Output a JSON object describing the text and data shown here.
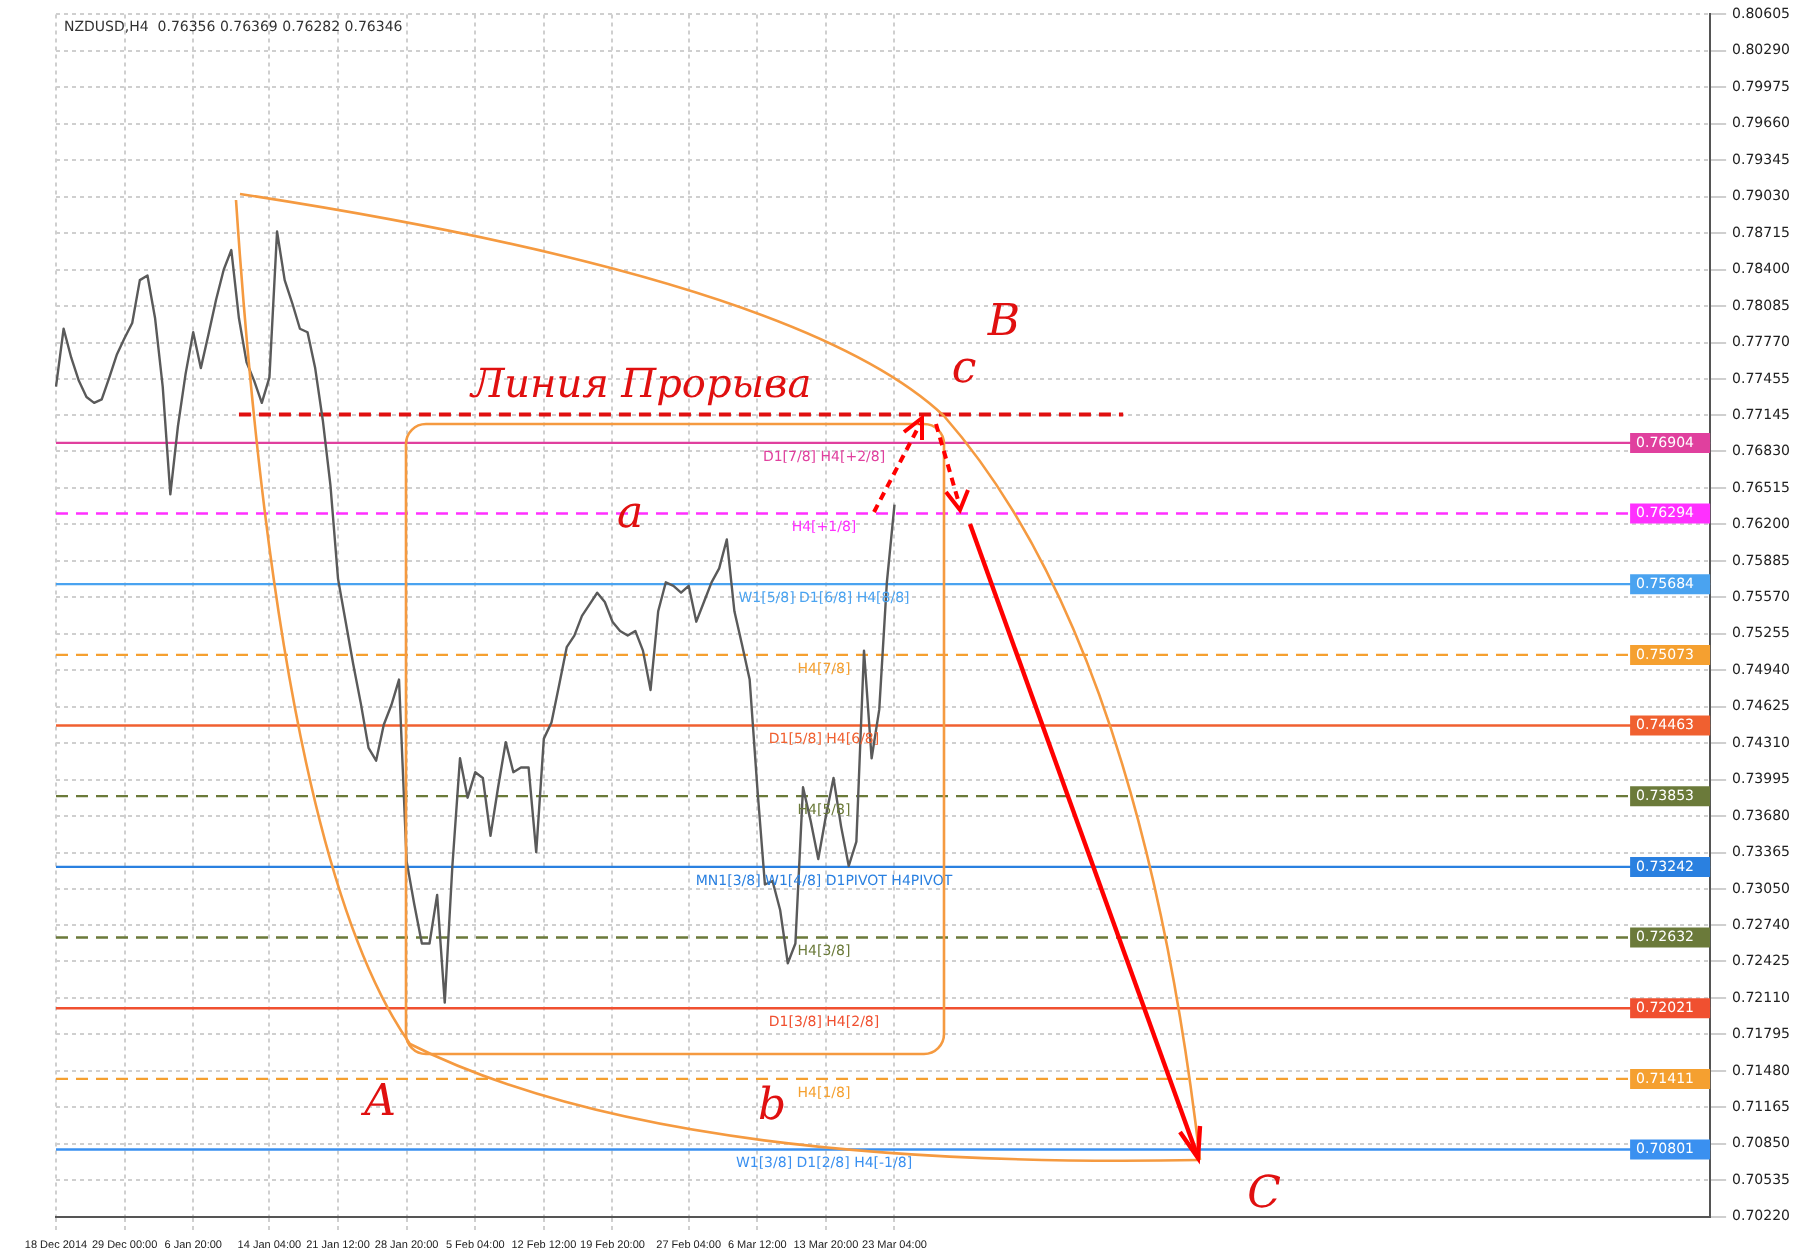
{
  "chart_data": {
    "type": "line",
    "title": "NZDUSD,H4  0.76356 0.76369 0.76282 0.76346",
    "categories": [
      "18 Dec 2014",
      null,
      null,
      null,
      null,
      null,
      null,
      null,
      null,
      "29 Dec 00:00",
      null,
      null,
      null,
      null,
      null,
      null,
      null,
      null,
      "6 Jan 20:00",
      null,
      null,
      null,
      null,
      null,
      null,
      null,
      null,
      null,
      "14 Jan 04:00",
      null,
      null,
      null,
      null,
      null,
      null,
      null,
      null,
      "21 Jan 12:00",
      null,
      null,
      null,
      null,
      null,
      null,
      null,
      null,
      "28 Jan 20:00",
      null,
      null,
      null,
      null,
      null,
      null,
      null,
      null,
      "5 Feb 04:00",
      null,
      null,
      null,
      null,
      null,
      null,
      null,
      null,
      "12 Feb 12:00",
      null,
      null,
      null,
      null,
      null,
      null,
      null,
      null,
      "19 Feb 20:00",
      null,
      null,
      null,
      null,
      null,
      null,
      null,
      null,
      null,
      "27 Feb 04:00",
      null,
      null,
      null,
      null,
      null,
      null,
      null,
      null,
      "6 Mar 12:00",
      null,
      null,
      null,
      null,
      null,
      null,
      null,
      null,
      "13 Mar 20:00",
      null,
      null,
      null,
      null,
      null,
      null,
      null,
      null,
      "23 Mar 04:00",
      null,
      null,
      null,
      null,
      null,
      null,
      null,
      null,
      null,
      null,
      null,
      null,
      null,
      null,
      null,
      null,
      null,
      null,
      null,
      null,
      null,
      null,
      null,
      null,
      null,
      null,
      null,
      null,
      null,
      null,
      null,
      null,
      null,
      null,
      null,
      null,
      null,
      null,
      null,
      null,
      null,
      null,
      null,
      null,
      null,
      null,
      null,
      null,
      null,
      null,
      null,
      null,
      null,
      null,
      null,
      null,
      null,
      null,
      null,
      null,
      null,
      null,
      null,
      null,
      null,
      null,
      null,
      null,
      null,
      null,
      null,
      null,
      null,
      null,
      null,
      null,
      null,
      null,
      null,
      null,
      null,
      null,
      null,
      null,
      null,
      null,
      null,
      null,
      null,
      null,
      null,
      null,
      null,
      null,
      null,
      null,
      null,
      null,
      null,
      null,
      null,
      null,
      null,
      null,
      null,
      null,
      null
    ],
    "series": [
      {
        "color": "#5a5a5a",
        "values": [
          0.7739,
          0.7789,
          0.7764,
          0.7744,
          0.773,
          0.7725,
          0.7728,
          0.7747,
          0.7767,
          0.7781,
          0.7794,
          0.7831,
          0.7835,
          0.7798,
          0.7739,
          0.7646,
          0.7705,
          0.775,
          0.7786,
          0.7755,
          0.7784,
          0.7814,
          0.784,
          0.7857,
          0.7798,
          0.776,
          0.7744,
          0.7725,
          0.7747,
          0.7873,
          0.7831,
          0.7811,
          0.7789,
          0.7786,
          0.7755,
          0.771,
          0.7654,
          0.7573,
          0.7536,
          0.7499,
          0.7465,
          0.7427,
          0.7416,
          0.7447,
          0.7464,
          0.7486,
          0.7329,
          0.7292,
          0.7258,
          0.7258,
          0.73,
          0.7207,
          0.7325,
          0.7418,
          0.7384,
          0.7406,
          0.7401,
          0.7351,
          0.7393,
          0.7432,
          0.7406,
          0.741,
          0.741,
          0.7337,
          0.7435,
          0.7449,
          0.7481,
          0.7514,
          0.7524,
          0.7541,
          0.7551,
          0.7561,
          0.7553,
          0.7536,
          0.7528,
          0.7524,
          0.7528,
          0.7511,
          0.7477,
          0.7545,
          0.757,
          0.7567,
          0.7561,
          0.7567,
          0.7536,
          0.7553,
          0.757,
          0.7582,
          0.7607,
          0.7545,
          0.7516,
          0.7486,
          0.7393,
          0.7309,
          0.7312,
          0.7287,
          0.7241,
          0.7258,
          0.7393,
          0.7364,
          0.7331,
          0.7368,
          0.7401,
          0.7359,
          0.7325,
          0.7346,
          0.7511,
          0.7418,
          0.746,
          0.757,
          0.7637,
          null,
          null,
          null,
          null,
          null,
          null,
          null,
          null,
          null,
          null,
          null,
          null,
          null,
          null,
          null,
          null,
          null,
          null,
          null,
          null,
          null,
          null,
          null,
          null,
          null,
          null,
          null,
          null,
          null,
          null,
          null,
          null,
          null,
          null,
          null,
          null,
          null,
          null,
          null,
          null,
          null,
          null,
          null,
          null,
          null,
          null,
          null,
          null,
          null,
          null,
          null,
          null,
          null,
          null,
          null,
          null,
          null,
          null,
          null,
          null,
          null,
          null,
          null,
          null,
          null,
          null,
          null,
          null,
          null,
          null,
          null,
          null,
          null,
          null,
          null,
          null,
          null,
          null,
          null,
          null,
          null,
          null,
          null,
          null,
          null,
          null,
          null,
          null,
          null,
          null,
          null,
          null,
          null,
          null,
          null,
          null,
          null,
          null,
          null,
          null,
          null,
          null,
          null,
          null,
          null,
          null,
          null
        ]
      },
      {
        "name": "Линия Прорыва",
        "color": "#e01010",
        "line_style": "dashed",
        "values": [
          null,
          null,
          null,
          null,
          null,
          null,
          null,
          null,
          null,
          null,
          null,
          null,
          null,
          null,
          null,
          null,
          null,
          null,
          null,
          null,
          null,
          null,
          null,
          null,
          0.7715,
          null,
          null,
          null,
          null,
          null,
          null,
          null,
          null,
          null,
          null,
          null,
          null,
          null,
          null,
          null,
          null,
          null,
          null,
          null,
          null,
          null,
          null,
          null,
          null,
          null,
          null,
          null,
          null,
          null,
          null,
          null,
          null,
          null,
          null,
          null,
          null,
          null,
          null,
          null,
          null,
          null,
          null,
          null,
          null,
          null,
          null,
          null,
          null,
          null,
          null,
          null,
          null,
          null,
          null,
          null,
          null,
          null,
          null,
          null,
          null,
          null,
          null,
          null,
          null,
          null,
          null,
          null,
          null,
          null,
          null,
          null,
          null,
          null,
          null,
          null,
          null,
          null,
          null,
          null,
          null,
          null,
          null,
          null,
          null,
          null,
          null,
          null,
          null,
          null,
          null,
          null,
          null,
          null,
          null,
          null,
          null,
          null,
          null,
          null,
          null,
          null,
          null,
          null,
          null,
          null,
          null,
          null,
          null,
          null,
          null,
          null,
          null,
          null,
          null,
          null,
          0.7715,
          null,
          null,
          null,
          null,
          null,
          null,
          null,
          null,
          null,
          null,
          null,
          null,
          null,
          null,
          null,
          null,
          null,
          null,
          null,
          null,
          null,
          null,
          null,
          null,
          null,
          null,
          null,
          null,
          null,
          null,
          null,
          null,
          null,
          null,
          null,
          null,
          null,
          null,
          null,
          null,
          null,
          null,
          null,
          null,
          null,
          null,
          null,
          null,
          null,
          null,
          null,
          null,
          null,
          null,
          null,
          null,
          null,
          null,
          null,
          null,
          null,
          null,
          null,
          null,
          null,
          null,
          null,
          null,
          null,
          null,
          null,
          null,
          null,
          null,
          null,
          null,
          null
        ]
      }
    ],
    "ylim": [
      0.7022,
      0.80605
    ],
    "yticks": [
      0.80605,
      {
        "value": 0.8029,
        "label": "0.80290"
      },
      0.79975,
      {
        "value": 0.7966,
        "label": "0.79660"
      },
      0.79345,
      {
        "value": 0.7903,
        "label": "0.79030"
      },
      0.78715,
      {
        "value": 0.784,
        "label": "0.78400"
      },
      0.78085,
      {
        "value": 0.7777,
        "label": "0.77770"
      },
      0.77455,
      0.77145,
      {
        "value": 0.7683,
        "label": "0.76830"
      },
      0.76515,
      {
        "value": 0.762,
        "label": "0.76200"
      },
      0.75885,
      {
        "value": 0.7557,
        "label": "0.75570"
      },
      0.75255,
      {
        "value": 0.7494,
        "label": "0.74940"
      },
      0.74625,
      {
        "value": 0.7431,
        "label": "0.74310"
      },
      0.73995,
      {
        "value": 0.7368,
        "label": "0.73680"
      },
      0.73365,
      {
        "value": 0.7305,
        "label": "0.73050"
      },
      {
        "value": 0.7274,
        "label": "0.72740"
      },
      0.72425,
      {
        "value": 0.7211,
        "label": "0.72110"
      },
      0.71795,
      {
        "value": 0.7148,
        "label": "0.71480"
      },
      0.71165,
      {
        "value": 0.7085,
        "label": "0.70850"
      },
      0.70535,
      {
        "value": 0.7022,
        "label": "0.70220"
      }
    ],
    "grid": true,
    "ref_lines": [
      {
        "axis": "y",
        "value": 0.76904,
        "label": "0.76904",
        "color": "#e0409e",
        "line_style": "solid"
      },
      {
        "axis": "y",
        "value": 0.76294,
        "label": "0.76294",
        "color": "#ff30ff",
        "line_style": "dashed"
      },
      {
        "axis": "y",
        "value": 0.75684,
        "label": "0.75684",
        "color": "#4aa3f0",
        "line_style": "solid"
      },
      {
        "axis": "y",
        "value": 0.75073,
        "label": "0.75073",
        "color": "#f5a030",
        "line_style": "dashed"
      },
      {
        "axis": "y",
        "value": 0.74463,
        "label": "0.74463",
        "color": "#f06030",
        "line_style": "solid"
      },
      {
        "axis": "y",
        "value": 0.73853,
        "label": "0.73853",
        "color": "#6b7a3a",
        "line_style": "dashed"
      },
      {
        "axis": "y",
        "value": 0.73242,
        "label": "0.73242",
        "color": "#2a80e0",
        "line_style": "solid"
      },
      {
        "axis": "y",
        "value": 0.72632,
        "label": "0.72632",
        "color": "#6b7a3a",
        "line_style": "dashed"
      },
      {
        "axis": "y",
        "value": 0.72021,
        "label": "0.72021",
        "color": "#f05030",
        "line_style": "solid"
      },
      {
        "axis": "y",
        "value": 0.71411,
        "label": "0.71411",
        "color": "#f5a030",
        "line_style": "dashed"
      },
      {
        "axis": "y",
        "value": 0.70801,
        "label": "0.70801",
        "color": "#3a90f0",
        "line_style": "solid"
      }
    ],
    "annotations": [
      "a",
      "b",
      {
        "text": "c",
        "y": 0.7715
      },
      "A",
      "B",
      "C",
      {
        "text": "D1[7/8] H4[+2/8]",
        "y": 0.76904
      },
      {
        "text": "H4[+1/8]",
        "y": 0.76294
      },
      {
        "text": "W1[5/8] D1[6/8] H4[8/8]",
        "y": 0.75684
      },
      {
        "text": "H4[7/8]",
        "y": 0.75073
      },
      {
        "text": "D1[5/8] H4[6/8]",
        "y": 0.74463
      },
      {
        "text": "H4[5/8]",
        "y": 0.73853
      },
      {
        "text": "MN1[3/8] W1[4/8] D1PIVOT H4PIVOT",
        "y": 0.73242
      },
      {
        "text": "H4[3/8]",
        "y": 0.72632
      },
      {
        "text": "D1[3/8] H4[2/8]",
        "y": 0.72021
      },
      {
        "text": "H4[1/8]",
        "y": 0.71411
      },
      {
        "text": "W1[3/8] D1[2/8] H4[-1/8]",
        "y": 0.70801
      }
    ]
  }
}
